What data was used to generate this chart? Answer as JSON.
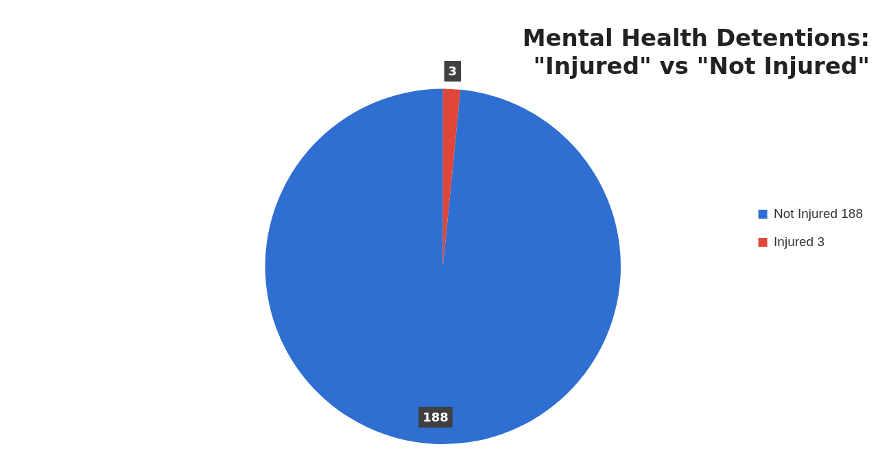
{
  "chart_data": {
    "type": "pie",
    "title": "Mental Health Detentions:\n\"Injured\" vs \"Not Injured\"",
    "categories": [
      "Not Injured 188",
      "Injured 3"
    ],
    "values": [
      188,
      3
    ],
    "colors": [
      "#2f6fd1",
      "#e0463a"
    ],
    "data_labels": true,
    "legend": "right"
  }
}
